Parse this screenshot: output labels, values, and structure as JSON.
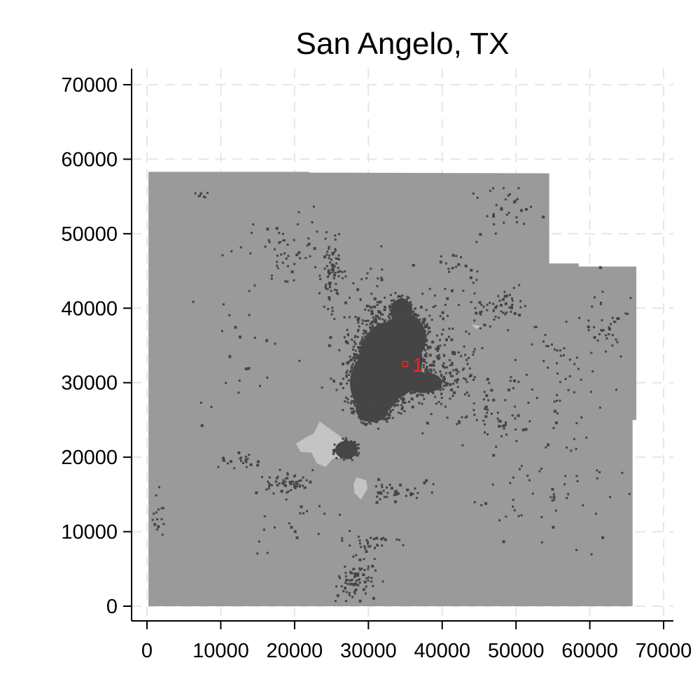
{
  "chart_data": {
    "type": "scatter",
    "title": "San Angelo, TX",
    "xlabel": "",
    "ylabel": "",
    "xlim": [
      -2000,
      72000
    ],
    "ylim": [
      -2000,
      72000
    ],
    "x_ticks": [
      "0",
      "10000",
      "20000",
      "30000",
      "40000",
      "50000",
      "60000",
      "70000"
    ],
    "y_ticks": [
      "0",
      "10000",
      "20000",
      "30000",
      "40000",
      "50000",
      "60000",
      "70000"
    ],
    "grid": true,
    "legend": "none",
    "colors": {
      "region": "#9a9a9a",
      "developed": "#454545",
      "light_area": "#c4c4c4",
      "marker": "#ff2020"
    },
    "region_outline": [
      [
        200,
        58300
      ],
      [
        22000,
        58300
      ],
      [
        22000,
        58200
      ],
      [
        54500,
        58100
      ],
      [
        54500,
        46000
      ],
      [
        58500,
        46000
      ],
      [
        58500,
        45600
      ],
      [
        66300,
        45600
      ],
      [
        66300,
        25000
      ],
      [
        65800,
        25000
      ],
      [
        65800,
        0
      ],
      [
        200,
        0
      ]
    ],
    "urban_core": [
      {
        "x": 33000,
        "y": 33000,
        "rx": 4300,
        "ry": 5200
      },
      {
        "x": 31000,
        "y": 30000,
        "rx": 3500,
        "ry": 4200
      },
      {
        "x": 30500,
        "y": 26500,
        "rx": 2200,
        "ry": 1800
      },
      {
        "x": 35500,
        "y": 36000,
        "rx": 2300,
        "ry": 3000
      },
      {
        "x": 37500,
        "y": 30000,
        "rx": 2500,
        "ry": 1400
      },
      {
        "x": 34500,
        "y": 39500,
        "rx": 1500,
        "ry": 1800
      },
      {
        "x": 27000,
        "y": 21000,
        "rx": 1500,
        "ry": 1200
      }
    ],
    "light_areas": [
      [
        [
          23400,
          24800
        ],
        [
          24800,
          23800
        ],
        [
          26200,
          22800
        ],
        [
          27300,
          21500
        ],
        [
          26800,
          20000
        ],
        [
          25200,
          19800
        ],
        [
          24200,
          18700
        ],
        [
          23000,
          19200
        ],
        [
          22300,
          20600
        ],
        [
          20800,
          20700
        ],
        [
          20200,
          21800
        ],
        [
          21400,
          22600
        ],
        [
          22600,
          23200
        ]
      ],
      [
        [
          28400,
          17300
        ],
        [
          29700,
          16900
        ],
        [
          29900,
          15800
        ],
        [
          29000,
          14300
        ],
        [
          28100,
          15200
        ],
        [
          28000,
          16400
        ]
      ],
      [
        [
          29300,
          36200
        ],
        [
          30600,
          35800
        ],
        [
          30300,
          34300
        ],
        [
          29100,
          34600
        ]
      ],
      [
        [
          44000,
          37800
        ],
        [
          45300,
          37600
        ],
        [
          44600,
          37200
        ]
      ]
    ],
    "scatter_clusters": [
      {
        "x": 31200,
        "y": 34000,
        "rx": 3700,
        "ry": 7000,
        "n": 400
      },
      {
        "x": 36500,
        "y": 34000,
        "rx": 5000,
        "ry": 6000,
        "n": 220
      },
      {
        "x": 41000,
        "y": 31000,
        "rx": 5000,
        "ry": 4000,
        "n": 90
      },
      {
        "x": 25200,
        "y": 44500,
        "rx": 1200,
        "ry": 3500,
        "n": 70
      },
      {
        "x": 19500,
        "y": 47000,
        "rx": 6000,
        "ry": 3800,
        "n": 60
      },
      {
        "x": 47500,
        "y": 40500,
        "rx": 3200,
        "ry": 2200,
        "n": 50
      },
      {
        "x": 18800,
        "y": 16500,
        "rx": 2500,
        "ry": 1800,
        "n": 60
      },
      {
        "x": 28200,
        "y": 3200,
        "rx": 2000,
        "ry": 3000,
        "n": 80
      },
      {
        "x": 30000,
        "y": 8500,
        "rx": 3500,
        "ry": 1200,
        "n": 30
      },
      {
        "x": 34500,
        "y": 15500,
        "rx": 3500,
        "ry": 1300,
        "n": 40
      },
      {
        "x": 47000,
        "y": 25000,
        "rx": 4500,
        "ry": 2500,
        "n": 40
      },
      {
        "x": 49000,
        "y": 53500,
        "rx": 3000,
        "ry": 3000,
        "n": 30
      },
      {
        "x": 55000,
        "y": 30000,
        "rx": 6000,
        "ry": 8000,
        "n": 60
      },
      {
        "x": 62500,
        "y": 38000,
        "rx": 3500,
        "ry": 5000,
        "n": 40
      },
      {
        "x": 54000,
        "y": 15000,
        "rx": 9000,
        "ry": 7000,
        "n": 60
      },
      {
        "x": 13000,
        "y": 19500,
        "rx": 2000,
        "ry": 1000,
        "n": 20
      },
      {
        "x": 1500,
        "y": 12500,
        "rx": 1000,
        "ry": 3500,
        "n": 15
      },
      {
        "x": 8000,
        "y": 55500,
        "rx": 1500,
        "ry": 800,
        "n": 8
      },
      {
        "x": 12000,
        "y": 33000,
        "rx": 10000,
        "ry": 10000,
        "n": 25
      },
      {
        "x": 42000,
        "y": 45000,
        "rx": 4000,
        "ry": 4000,
        "n": 25
      },
      {
        "x": 20000,
        "y": 10000,
        "rx": 6000,
        "ry": 4000,
        "n": 20
      }
    ],
    "annotations": [
      {
        "x": 35000,
        "y": 32500,
        "label": "1",
        "color": "#ff2020"
      }
    ]
  }
}
